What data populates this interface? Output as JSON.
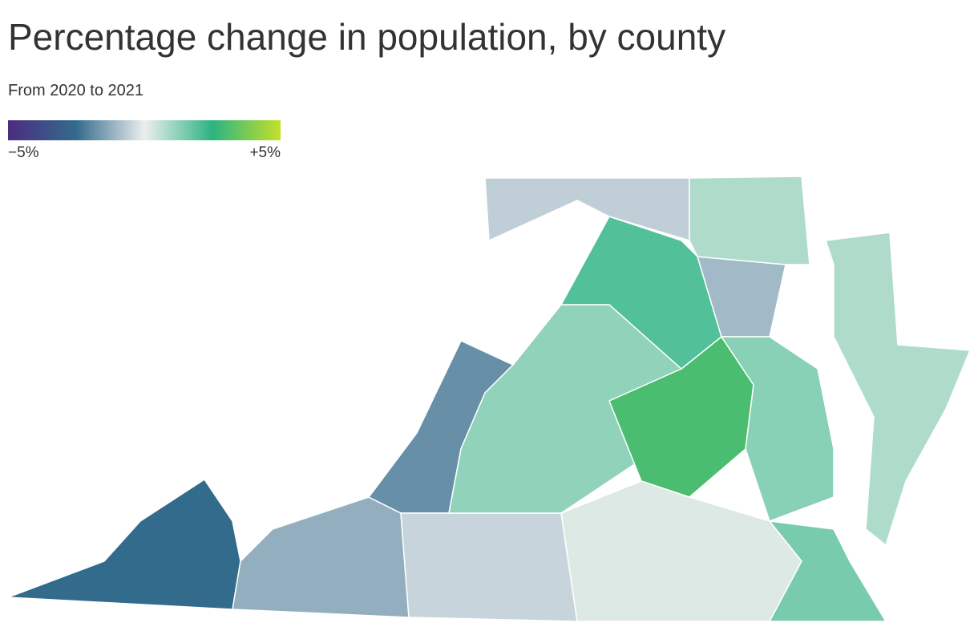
{
  "chart_data": {
    "type": "choropleth",
    "title": "Percentage change in population, by county",
    "subtitle": "From 2020 to 2021",
    "clim": [
      -5,
      5
    ],
    "ticks": [
      {
        "value": -5,
        "label": "−5%"
      },
      {
        "value": 5,
        "label": "+5%"
      }
    ],
    "colorscale": [
      {
        "value": -5,
        "color": "#4b2d7f"
      },
      {
        "value": -2.5,
        "color": "#336b8d"
      },
      {
        "value": 0,
        "color": "#eceeee"
      },
      {
        "value": 2.5,
        "color": "#2cb482"
      },
      {
        "value": 5,
        "color": "#c3e02a"
      }
    ],
    "values": [
      -2.5,
      -1.2,
      -1.8,
      -0.5,
      1.2,
      3,
      0.2,
      1.5,
      2,
      -1,
      -0.6,
      0.8,
      0.8,
      1.3
    ]
  }
}
